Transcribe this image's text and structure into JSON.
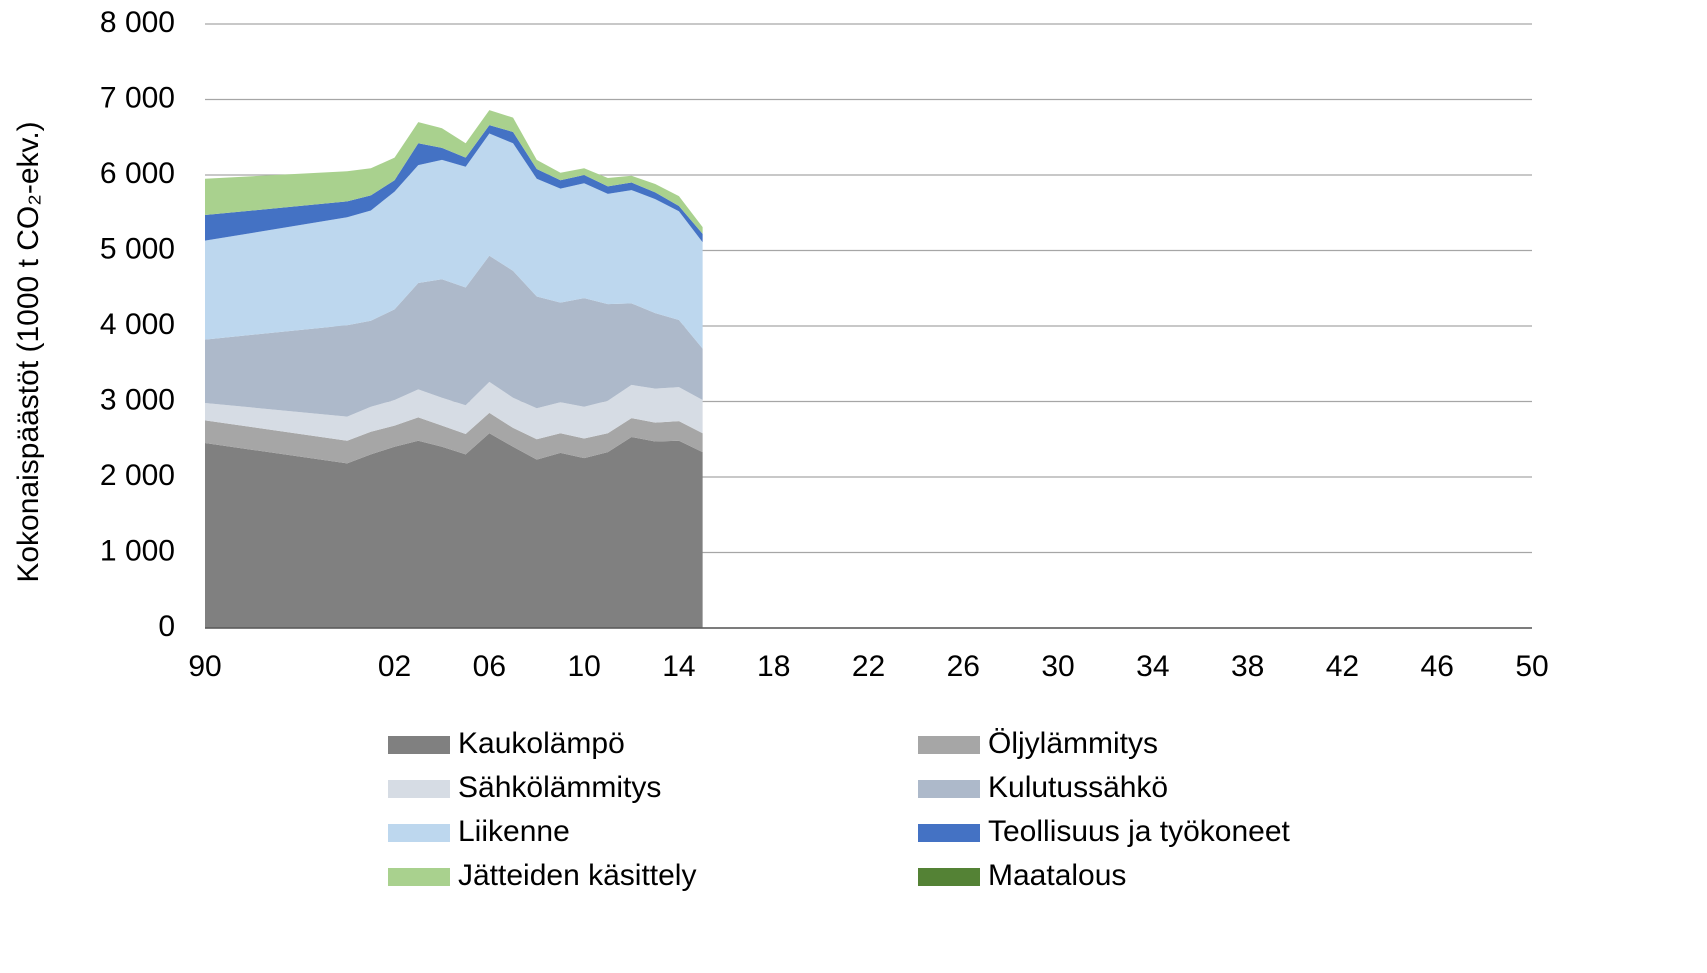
{
  "chart_data": {
    "type": "stacked_area",
    "y_label": "Kokonaispäästöt (1000 t CO₂-ekv.)",
    "categories": [
      "90",
      null,
      null,
      null,
      null,
      null,
      null,
      null,
      "02",
      null,
      null,
      null,
      "06",
      null,
      null,
      null,
      "10",
      null,
      null,
      null,
      "14",
      null,
      null,
      null,
      "18",
      null,
      null,
      null,
      "22",
      null,
      null,
      null,
      "26",
      null,
      null,
      null,
      "30",
      null,
      null,
      null,
      "34",
      null,
      null,
      null,
      "38",
      null,
      null,
      null,
      "42",
      null,
      null,
      null,
      "46",
      null,
      null,
      null,
      "50"
    ],
    "series": [
      {
        "name": "Kaukolämpö",
        "color": "#808080",
        "values": [
          2450,
          null,
          null,
          null,
          null,
          null,
          2180,
          2300,
          2400,
          2480,
          2400,
          2300,
          2580,
          2400,
          2230,
          2320,
          2250,
          2330,
          2530,
          2470,
          2480,
          2330,
          null,
          null,
          null,
          null,
          null,
          null,
          null,
          null,
          null,
          null,
          null,
          null,
          null,
          null,
          null,
          null,
          null,
          null,
          null,
          null,
          null,
          null,
          null,
          null,
          null,
          null,
          null,
          null,
          null,
          null,
          null,
          null,
          null,
          null,
          null
        ]
      },
      {
        "name": "Öljylämmitys",
        "color": "#a6a6a6",
        "values": [
          300,
          null,
          null,
          null,
          null,
          null,
          300,
          300,
          280,
          310,
          280,
          270,
          270,
          250,
          270,
          260,
          260,
          250,
          250,
          250,
          260,
          250,
          null,
          null,
          null,
          null,
          null,
          null,
          null,
          null,
          null,
          null,
          null,
          null,
          null,
          null,
          null,
          null,
          null,
          null,
          null,
          null,
          null,
          null,
          null,
          null,
          null,
          null,
          null,
          null,
          null,
          null,
          null,
          null,
          null,
          null,
          null
        ]
      },
      {
        "name": "Sähkölämmitys",
        "color": "#d6dce4",
        "values": [
          230,
          null,
          null,
          null,
          null,
          null,
          320,
          330,
          340,
          370,
          370,
          380,
          410,
          400,
          410,
          410,
          420,
          430,
          440,
          450,
          450,
          440,
          null,
          null,
          null,
          null,
          null,
          null,
          null,
          null,
          null,
          null,
          null,
          null,
          null,
          null,
          null,
          null,
          null,
          null,
          null,
          null,
          null,
          null,
          null,
          null,
          null,
          null,
          null,
          null,
          null,
          null,
          null,
          null,
          null,
          null,
          null
        ]
      },
      {
        "name": "Kulutussähkö",
        "color": "#adb9ca",
        "values": [
          840,
          null,
          null,
          null,
          null,
          null,
          1210,
          1140,
          1200,
          1410,
          1570,
          1560,
          1670,
          1680,
          1480,
          1320,
          1440,
          1280,
          1080,
          1000,
          890,
          680,
          null,
          null,
          null,
          null,
          null,
          null,
          null,
          null,
          null,
          null,
          null,
          null,
          null,
          null,
          null,
          null,
          null,
          null,
          null,
          null,
          null,
          null,
          null,
          null,
          null,
          null,
          null,
          null,
          null,
          null,
          null,
          null,
          null,
          null,
          null
        ]
      },
      {
        "name": "Liikenne",
        "color": "#bdd7ee",
        "values": [
          1310,
          null,
          null,
          null,
          null,
          null,
          1430,
          1460,
          1560,
          1560,
          1580,
          1600,
          1620,
          1690,
          1560,
          1510,
          1520,
          1460,
          1500,
          1510,
          1440,
          1410,
          null,
          null,
          null,
          null,
          null,
          null,
          null,
          null,
          null,
          null,
          null,
          null,
          null,
          null,
          null,
          null,
          null,
          null,
          null,
          null,
          null,
          null,
          null,
          null,
          null,
          null,
          null,
          null,
          null,
          null,
          null,
          null,
          null,
          null,
          null
        ]
      },
      {
        "name": "Teollisuus ja työkoneet",
        "color": "#4472c4",
        "values": [
          340,
          null,
          null,
          null,
          null,
          null,
          210,
          200,
          150,
          290,
          160,
          120,
          110,
          150,
          130,
          110,
          110,
          100,
          100,
          90,
          70,
          110,
          null,
          null,
          null,
          null,
          null,
          null,
          null,
          null,
          null,
          null,
          null,
          null,
          null,
          null,
          null,
          null,
          null,
          null,
          null,
          null,
          null,
          null,
          null,
          null,
          null,
          null,
          null,
          null,
          null,
          null,
          null,
          null,
          null,
          null,
          null
        ]
      },
      {
        "name": "Jätteiden käsittely",
        "color": "#a9d18e",
        "values": [
          480,
          null,
          null,
          null,
          null,
          null,
          400,
          360,
          300,
          280,
          260,
          190,
          200,
          190,
          120,
          100,
          90,
          110,
          90,
          110,
          130,
          90,
          null,
          null,
          null,
          null,
          null,
          null,
          null,
          null,
          null,
          null,
          null,
          null,
          null,
          null,
          null,
          null,
          null,
          null,
          null,
          null,
          null,
          null,
          null,
          null,
          null,
          null,
          null,
          null,
          null,
          null,
          null,
          null,
          null,
          null,
          null
        ]
      },
      {
        "name": "Maatalous",
        "color": "#548235",
        "values": [
          0,
          null,
          null,
          null,
          null,
          null,
          0,
          0,
          0,
          0,
          0,
          0,
          0,
          0,
          0,
          0,
          0,
          0,
          0,
          0,
          0,
          0,
          null,
          null,
          null,
          null,
          null,
          null,
          null,
          null,
          null,
          null,
          null,
          null,
          null,
          null,
          null,
          null,
          null,
          null,
          null,
          null,
          null,
          null,
          null,
          null,
          null,
          null,
          null,
          null,
          null,
          null,
          null,
          null,
          null,
          null,
          null
        ]
      }
    ],
    "ylim": [
      0,
      8000
    ],
    "yticks": [
      0,
      {
        "value": 1000,
        "label": "1 000"
      },
      {
        "value": 2000,
        "label": "2 000"
      },
      {
        "value": 3000,
        "label": "3 000"
      },
      {
        "value": 4000,
        "label": "4 000"
      },
      {
        "value": 5000,
        "label": "5 000"
      },
      {
        "value": 6000,
        "label": "6 000"
      },
      {
        "value": 7000,
        "label": "7 000"
      },
      {
        "value": 8000,
        "label": "8 000"
      }
    ],
    "grid": true
  }
}
